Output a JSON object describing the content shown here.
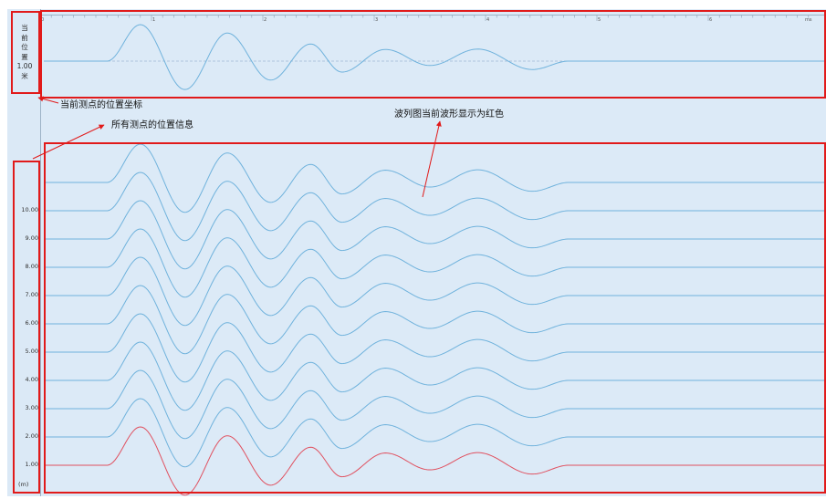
{
  "current_position": {
    "chars": [
      "当",
      "前",
      "位",
      "置",
      "1.00",
      "米"
    ]
  },
  "annotations": {
    "coord_note": "当前测点的位置坐标",
    "all_points_note": "所有测点的位置信息",
    "red_wave_note": "波列图当前波形显示为红色"
  },
  "colors": {
    "wave": "#6fb2dc",
    "current_wave": "#e0505f",
    "annotation": "#e11a1a",
    "background": "#dceaf7"
  },
  "chart_data": [
    {
      "type": "line",
      "xlabel": "ms",
      "x_ticks": [
        "0",
        "1",
        "2",
        "3",
        "4",
        "5",
        "6"
      ],
      "xlim": [
        0,
        6.95
      ],
      "series": [
        {
          "position_m": 1.0,
          "waveform": {
            "start_ms": 0.6,
            "end_ms": 4.75,
            "peaks": [
              {
                "x": 0.9,
                "y": 1.0
              },
              {
                "x": 1.3,
                "y": -0.78
              },
              {
                "x": 1.68,
                "y": 0.77
              },
              {
                "x": 2.07,
                "y": -0.52
              },
              {
                "x": 2.43,
                "y": 0.47
              },
              {
                "x": 2.71,
                "y": -0.3
              },
              {
                "x": 3.1,
                "y": 0.32
              },
              {
                "x": 3.5,
                "y": -0.12
              },
              {
                "x": 3.93,
                "y": 0.33
              },
              {
                "x": 4.42,
                "y": -0.23
              }
            ]
          }
        }
      ]
    },
    {
      "type": "line",
      "ylabel": "(m)",
      "y_ticks": [
        "1.00",
        "2.00",
        "3.00",
        "4.00",
        "5.00",
        "6.00",
        "7.00",
        "8.00",
        "9.00",
        "10.00"
      ],
      "current_position_m": 1.0,
      "series": [
        {
          "position_m": 1.0,
          "current": true
        },
        {
          "position_m": 2.0
        },
        {
          "position_m": 3.0
        },
        {
          "position_m": 4.0
        },
        {
          "position_m": 5.0
        },
        {
          "position_m": 6.0
        },
        {
          "position_m": 7.0
        },
        {
          "position_m": 8.0
        },
        {
          "position_m": 9.0
        },
        {
          "position_m": 10.0
        },
        {
          "position_m": 11.0
        }
      ]
    }
  ]
}
